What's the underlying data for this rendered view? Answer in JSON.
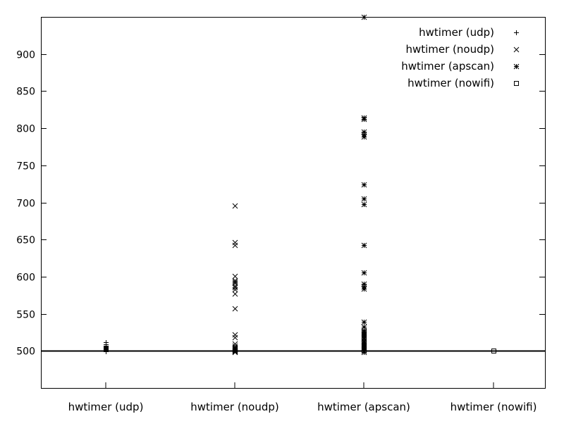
{
  "chart_data": {
    "type": "scatter",
    "title": "",
    "xlabel": "",
    "ylabel": "",
    "categories": [
      "hwtimer (udp)",
      "hwtimer (noudp)",
      "hwtimer (apscan)",
      "hwtimer (nowifi)"
    ],
    "ylim": [
      450,
      950
    ],
    "yticks": [
      500,
      550,
      600,
      650,
      700,
      750,
      800,
      850,
      900
    ],
    "grid": false,
    "legend_position": "top-right",
    "reference_line": 500,
    "series": [
      {
        "name": "hwtimer (udp)",
        "category": "hwtimer (udp)",
        "marker": "plus",
        "values": [
          499,
          500,
          500,
          501,
          501,
          502,
          502,
          503,
          504,
          505,
          506,
          507,
          509,
          512
        ]
      },
      {
        "name": "hwtimer (noudp)",
        "category": "hwtimer (noudp)",
        "marker": "cross",
        "values": [
          498,
          499,
          500,
          501,
          502,
          503,
          504,
          505,
          507,
          510,
          518,
          522,
          557,
          577,
          583,
          586,
          588,
          591,
          593,
          595,
          601,
          643,
          646,
          696
        ]
      },
      {
        "name": "hwtimer (apscan)",
        "category": "hwtimer (apscan)",
        "marker": "star",
        "values": [
          498,
          500,
          502,
          504,
          506,
          508,
          510,
          512,
          514,
          516,
          518,
          520,
          522,
          524,
          526,
          528,
          533,
          539,
          584,
          587,
          590,
          606,
          643,
          698,
          705,
          724,
          789,
          792,
          795,
          812,
          814,
          950
        ]
      },
      {
        "name": "hwtimer (nowifi)",
        "category": "hwtimer (nowifi)",
        "marker": "square",
        "values": [
          500,
          500,
          500
        ]
      }
    ]
  }
}
